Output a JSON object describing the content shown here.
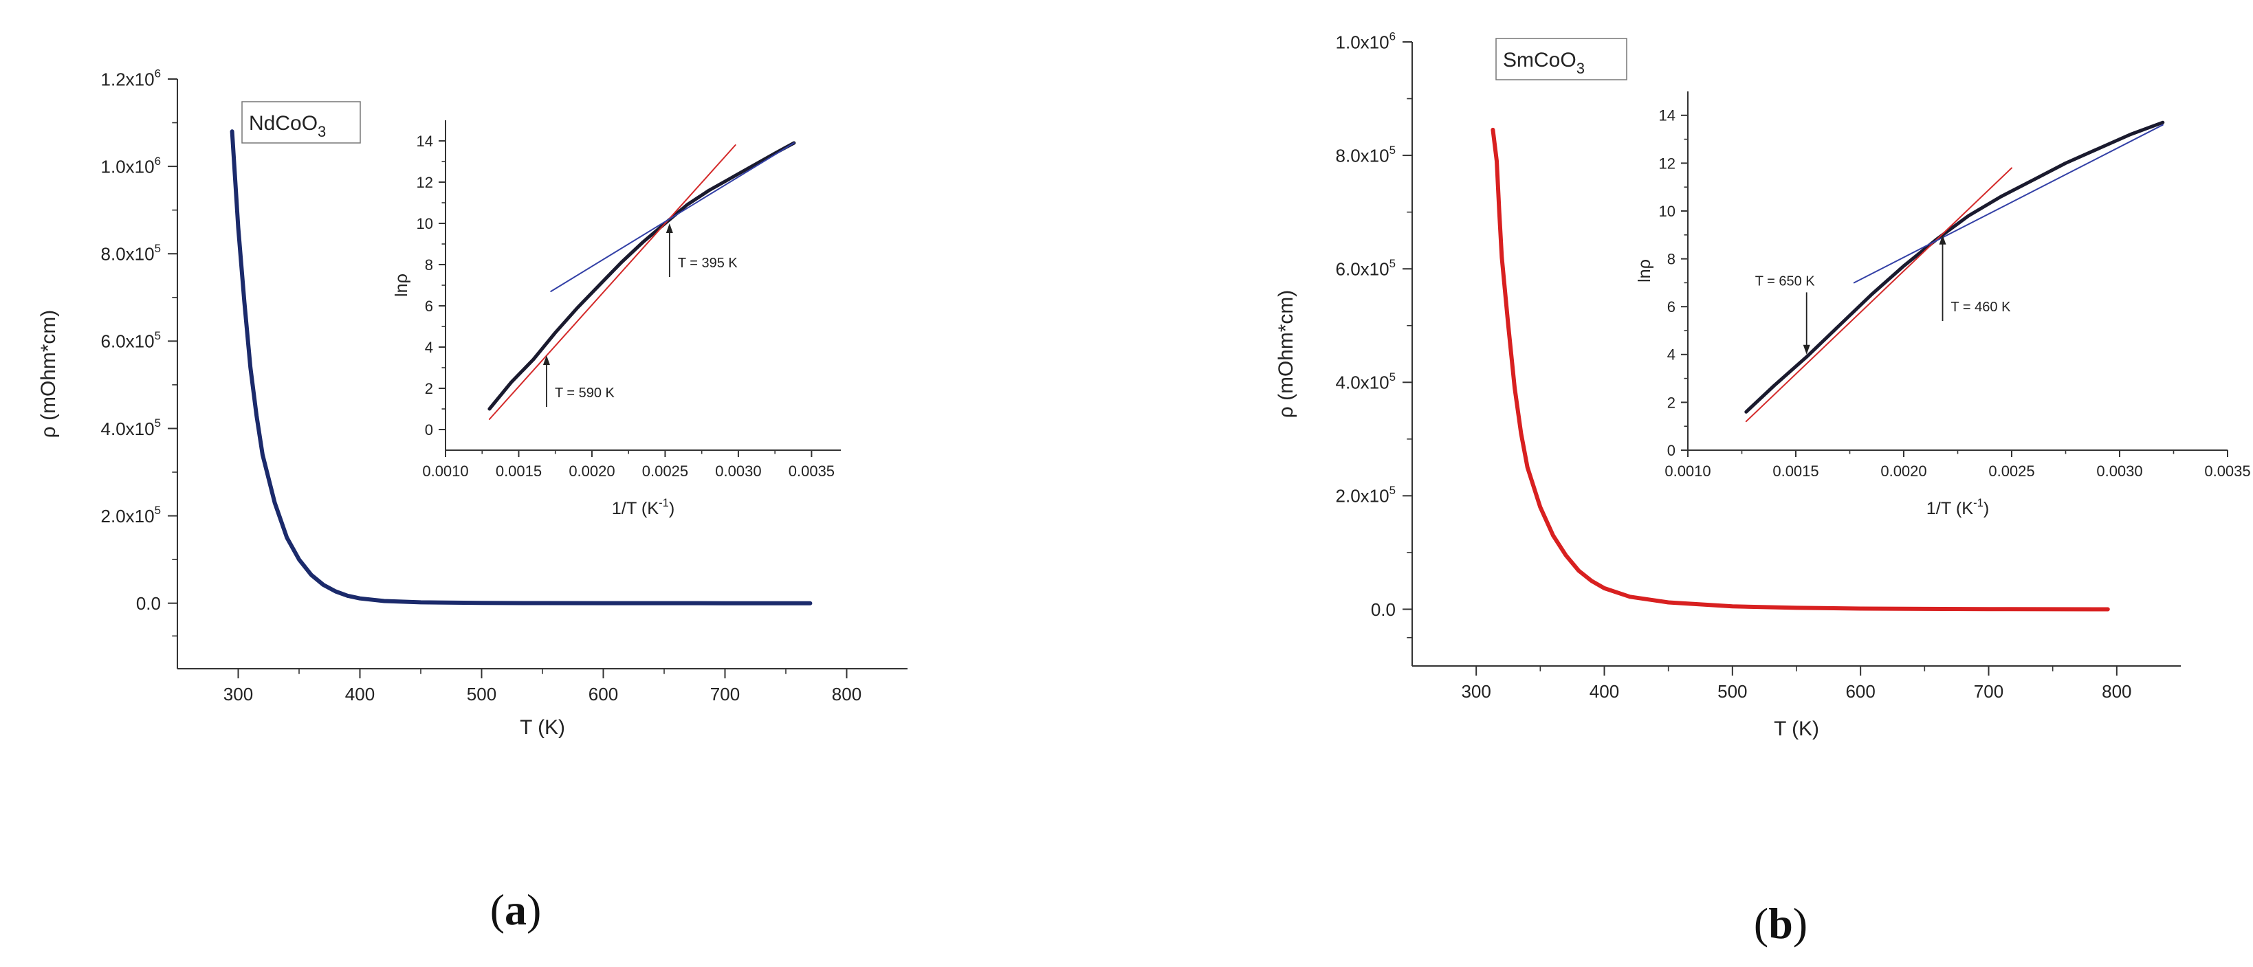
{
  "figure": {
    "panel_a_label": {
      "open": "(",
      "letter": "a",
      "close": ")"
    },
    "panel_b_label": {
      "open": "(",
      "letter": "b",
      "close": ")"
    }
  },
  "chart_data": [
    {
      "id": "a_main",
      "type": "line",
      "legend_box": {
        "base": "NdCoO",
        "sub": "3"
      },
      "xlabel": "T (K)",
      "ylabel": "ρ (mOhm*cm)",
      "xlim": [
        250,
        850
      ],
      "ylim": [
        -150000,
        1200000
      ],
      "x_ticks": [
        "300",
        "400",
        "500",
        "600",
        "700",
        "800"
      ],
      "x_tick_values": [
        300,
        400,
        500,
        600,
        700,
        800
      ],
      "y_ticks": [
        {
          "value": 0,
          "mant": "0.0",
          "exp": ""
        },
        {
          "value": 200000,
          "mant": "2.0x10",
          "exp": "5"
        },
        {
          "value": 400000,
          "mant": "4.0x10",
          "exp": "5"
        },
        {
          "value": 600000,
          "mant": "6.0x10",
          "exp": "5"
        },
        {
          "value": 800000,
          "mant": "8.0x10",
          "exp": "5"
        },
        {
          "value": 1000000,
          "mant": "1.0x10",
          "exp": "6"
        },
        {
          "value": 1200000,
          "mant": "1.2x10",
          "exp": "6"
        }
      ],
      "series": [
        {
          "name": "NdCoO3",
          "color": "#1b2a6b",
          "x": [
            295,
            300,
            305,
            310,
            315,
            320,
            330,
            340,
            350,
            360,
            370,
            380,
            390,
            400,
            420,
            450,
            500,
            550,
            600,
            650,
            700,
            770
          ],
          "y": [
            1080000,
            860000,
            690000,
            540000,
            430000,
            340000,
            230000,
            150000,
            100000,
            65000,
            42000,
            27000,
            17000,
            11000,
            5000,
            2000,
            500,
            200,
            100,
            50,
            20,
            0
          ]
        }
      ]
    },
    {
      "id": "a_inset",
      "type": "line",
      "xlabel": "1/T (K",
      "xlabel_sup": "-1",
      "xlabel_close": ")",
      "ylabel": "lnρ",
      "xlim": [
        0.001,
        0.0037
      ],
      "ylim": [
        -1,
        15
      ],
      "x_ticks": [
        "0.0010",
        "0.0015",
        "0.0020",
        "0.0025",
        "0.0030",
        "0.0035"
      ],
      "x_tick_values": [
        0.001,
        0.0015,
        0.002,
        0.0025,
        0.003,
        0.0035
      ],
      "y_ticks": [
        "0",
        "2",
        "4",
        "6",
        "8",
        "10",
        "12",
        "14"
      ],
      "y_tick_values": [
        0,
        2,
        4,
        6,
        8,
        10,
        12,
        14
      ],
      "annotations": [
        {
          "text": "T = 395 K",
          "x": 0.00253,
          "y": 10.0,
          "dir": "up",
          "len": 2.6
        },
        {
          "text": "T = 590 K",
          "x": 0.00169,
          "y": 3.6,
          "dir": "up",
          "len": 2.5
        }
      ],
      "series": [
        {
          "name": "data",
          "color": "#1a1a2e",
          "x": [
            0.0013,
            0.00145,
            0.0016,
            0.00175,
            0.0019,
            0.00205,
            0.0022,
            0.00235,
            0.0025,
            0.00265,
            0.0028,
            0.00295,
            0.0031,
            0.00325,
            0.00338
          ],
          "y": [
            1.0,
            2.3,
            3.4,
            4.7,
            5.9,
            7.0,
            8.1,
            9.1,
            10.0,
            10.9,
            11.6,
            12.2,
            12.8,
            13.4,
            13.9
          ]
        },
        {
          "name": "fit-low",
          "color": "#d42a2a",
          "x": [
            0.0013,
            0.00298
          ],
          "y": [
            0.5,
            13.8
          ]
        },
        {
          "name": "fit-high",
          "color": "#3340a6",
          "x": [
            0.00172,
            0.00338
          ],
          "y": [
            6.7,
            13.9
          ]
        }
      ]
    },
    {
      "id": "b_main",
      "type": "line",
      "legend_box": {
        "base": "SmCoO",
        "sub": "3"
      },
      "xlabel": "T (K)",
      "ylabel": "ρ (mOhm*cm)",
      "xlim": [
        250,
        850
      ],
      "ylim": [
        -100000,
        1000000
      ],
      "x_ticks": [
        "300",
        "400",
        "500",
        "600",
        "700",
        "800"
      ],
      "x_tick_values": [
        300,
        400,
        500,
        600,
        700,
        800
      ],
      "y_ticks": [
        {
          "value": 0,
          "mant": "0.0",
          "exp": ""
        },
        {
          "value": 200000,
          "mant": "2.0x10",
          "exp": "5"
        },
        {
          "value": 400000,
          "mant": "4.0x10",
          "exp": "5"
        },
        {
          "value": 600000,
          "mant": "6.0x10",
          "exp": "5"
        },
        {
          "value": 800000,
          "mant": "8.0x10",
          "exp": "5"
        },
        {
          "value": 1000000,
          "mant": "1.0x10",
          "exp": "6"
        }
      ],
      "series": [
        {
          "name": "SmCoO3",
          "color": "#d82020",
          "x": [
            313,
            316,
            318,
            320,
            325,
            330,
            335,
            340,
            350,
            360,
            370,
            380,
            390,
            400,
            420,
            450,
            500,
            550,
            600,
            700,
            793
          ],
          "y": [
            845000,
            790000,
            700000,
            620000,
            500000,
            390000,
            310000,
            250000,
            180000,
            130000,
            95000,
            68000,
            50000,
            37000,
            22000,
            12000,
            5000,
            2500,
            1200,
            300,
            0
          ]
        }
      ]
    },
    {
      "id": "b_inset",
      "type": "line",
      "xlabel": "1/T (K",
      "xlabel_sup": "-1",
      "xlabel_close": ")",
      "ylabel": "lnρ",
      "xlim": [
        0.001,
        0.0035
      ],
      "ylim": [
        0,
        15
      ],
      "x_ticks": [
        "0.0010",
        "0.0015",
        "0.0020",
        "0.0025",
        "0.0030",
        "0.0035"
      ],
      "x_tick_values": [
        0.001,
        0.0015,
        0.002,
        0.0025,
        0.003,
        0.0035
      ],
      "y_ticks": [
        "0",
        "2",
        "4",
        "6",
        "8",
        "10",
        "12",
        "14"
      ],
      "y_tick_values": [
        0,
        2,
        4,
        6,
        8,
        10,
        12,
        14
      ],
      "annotations": [
        {
          "text": "T = 650 K",
          "x": 0.00155,
          "y": 4.0,
          "dir": "down",
          "len": 2.6
        },
        {
          "text": "T = 460 K",
          "x": 0.00218,
          "y": 9.0,
          "dir": "up",
          "len": 3.6
        }
      ],
      "series": [
        {
          "name": "data",
          "color": "#1a1a2e",
          "x": [
            0.00127,
            0.0014,
            0.00155,
            0.0017,
            0.00185,
            0.002,
            0.00215,
            0.0023,
            0.00245,
            0.0026,
            0.00275,
            0.0029,
            0.00305,
            0.0032
          ],
          "y": [
            1.6,
            2.7,
            3.9,
            5.2,
            6.5,
            7.7,
            8.8,
            9.8,
            10.6,
            11.3,
            12.0,
            12.6,
            13.2,
            13.7
          ]
        },
        {
          "name": "fit-low",
          "color": "#d42a2a",
          "x": [
            0.00127,
            0.0025
          ],
          "y": [
            1.2,
            11.8
          ]
        },
        {
          "name": "fit-high",
          "color": "#3340a6",
          "x": [
            0.00177,
            0.0032
          ],
          "y": [
            7.0,
            13.6
          ]
        }
      ]
    }
  ]
}
